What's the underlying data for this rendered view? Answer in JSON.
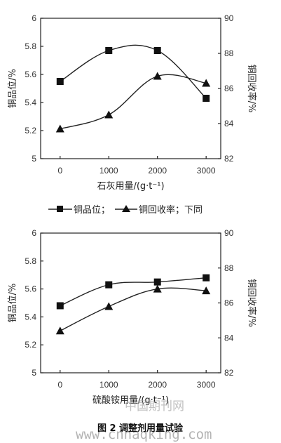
{
  "chart_data": [
    {
      "type": "line",
      "xlabel": "石灰用量/(g·t⁻¹)",
      "ylabel": "铜品位/%",
      "y2label": "铜回收率/%",
      "x_ticks": [
        "0",
        "1000",
        "2000",
        "3000"
      ],
      "xlim": [
        -400,
        3300
      ],
      "ylim": [
        5,
        6
      ],
      "y_ticks": [
        "5",
        "5.2",
        "5.4",
        "5.6",
        "5.8",
        "6"
      ],
      "y2lim": [
        82,
        90
      ],
      "y2_ticks": [
        "82",
        "84",
        "86",
        "88",
        "90"
      ],
      "legend": {
        "grade_label": "铜品位；",
        "recovery_label": "铜回收率；下同"
      },
      "series": [
        {
          "name": "铜品位",
          "axis": "left",
          "marker": "square",
          "x": [
            0,
            1000,
            2000,
            3000
          ],
          "y": [
            5.55,
            5.77,
            5.77,
            5.43
          ]
        },
        {
          "name": "铜回收率",
          "axis": "right",
          "marker": "triangle",
          "x": [
            0,
            1000,
            2000,
            3000
          ],
          "y": [
            83.7,
            84.5,
            86.7,
            86.3
          ]
        }
      ]
    },
    {
      "type": "line",
      "xlabel": "硫酸铵用量/(g·t⁻¹)",
      "ylabel": "铜品位/%",
      "y2label": "铜回收率/%",
      "x_ticks": [
        "0",
        "1000",
        "2000",
        "3000"
      ],
      "xlim": [
        -400,
        3300
      ],
      "ylim": [
        5,
        6
      ],
      "y_ticks": [
        "5",
        "5.2",
        "5.4",
        "5.6",
        "5.8",
        "6"
      ],
      "y2lim": [
        82,
        90
      ],
      "y2_ticks": [
        "82",
        "84",
        "86",
        "88",
        "90"
      ],
      "series": [
        {
          "name": "铜品位",
          "axis": "left",
          "marker": "square",
          "x": [
            0,
            1000,
            2000,
            3000
          ],
          "y": [
            5.48,
            5.63,
            5.65,
            5.68
          ]
        },
        {
          "name": "铜回收率",
          "axis": "right",
          "marker": "triangle",
          "x": [
            0,
            1000,
            2000,
            3000
          ],
          "y": [
            84.4,
            85.8,
            86.8,
            86.7
          ]
        }
      ]
    }
  ],
  "caption": "图 2 调整剂用量试验",
  "watermark": {
    "text_cn": "中国期刊网",
    "text_url": "www.cnhaqking.com"
  }
}
